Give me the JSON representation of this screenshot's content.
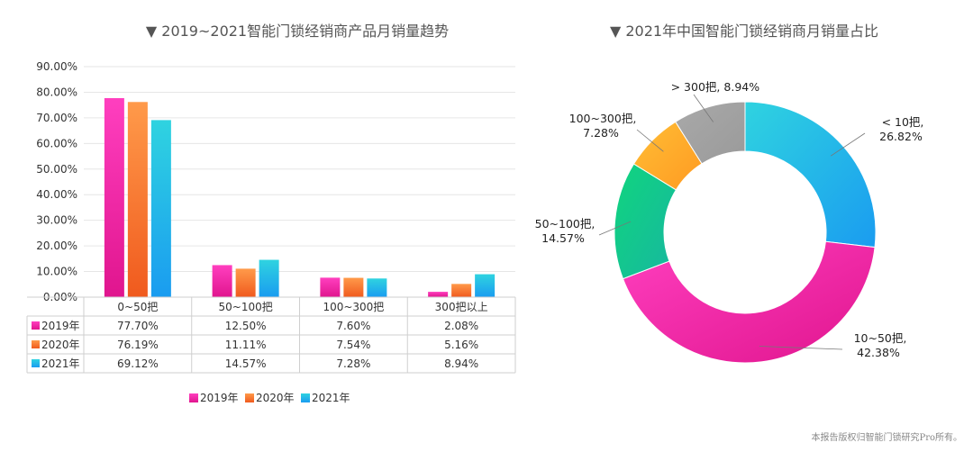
{
  "bar_title": "▼ 2019~2021智能门锁经销商产品月销量趋势",
  "donut_title": "▼ 2021年中国智能门锁经销商月销量占比",
  "watermark": "本报告版权归智能门锁研究Pro所有。",
  "colors": {
    "s2019_top": "#ff3fbf",
    "s2019_bot": "#e0158e",
    "s2020_top": "#ff9a4a",
    "s2020_bot": "#f05a1e",
    "s2021_top": "#2fd3e0",
    "s2021_bot": "#1a9cf0",
    "grid": "#e6e6e6",
    "table_border": "#cfcfcf"
  },
  "chart_data": [
    {
      "type": "bar",
      "title": "▼ 2019~2021智能门锁经销商产品月销量趋势",
      "categories": [
        "0~50把",
        "50~100把",
        "100~300把",
        "300把以上"
      ],
      "series": [
        {
          "name": "2019年",
          "values": [
            77.7,
            12.5,
            7.6,
            2.08
          ],
          "labels": [
            "77.70%",
            "12.50%",
            "7.60%",
            "2.08%"
          ]
        },
        {
          "name": "2020年",
          "values": [
            76.19,
            11.11,
            7.54,
            5.16
          ],
          "labels": [
            "76.19%",
            "11.11%",
            "7.54%",
            "5.16%"
          ]
        },
        {
          "name": "2021年",
          "values": [
            69.12,
            14.57,
            7.28,
            8.94
          ],
          "labels": [
            "69.12%",
            "14.57%",
            "7.28%",
            "8.94%"
          ]
        }
      ],
      "yticks": [
        "0.00%",
        "10.00%",
        "20.00%",
        "30.00%",
        "40.00%",
        "50.00%",
        "60.00%",
        "70.00%",
        "80.00%",
        "90.00%"
      ],
      "ylim": [
        0,
        90
      ],
      "grid": true,
      "legend": "bottom"
    },
    {
      "type": "pie",
      "title": "▼ 2021年中国智能门锁经销商月销量占比",
      "slices": [
        {
          "label": "< 10把",
          "value": 26.82,
          "text": "26.82%",
          "color_a": "#2fd3e0",
          "color_b": "#1a9cf0"
        },
        {
          "label": "10~50把",
          "value": 42.38,
          "text": "42.38%",
          "color_a": "#ff3fbf",
          "color_b": "#e0158e"
        },
        {
          "label": "50~100把",
          "value": 14.57,
          "text": "14.57%",
          "color_a": "#10d57e",
          "color_b": "#17b7a0"
        },
        {
          "label": "100~300把",
          "value": 7.28,
          "text": "7.28%",
          "color_a": "#ffbe35",
          "color_b": "#ff9a22"
        },
        {
          "label": "> 300把",
          "value": 8.94,
          "text": "8.94%",
          "color_a": "#a9a9a9",
          "color_b": "#9a9a9a"
        }
      ]
    }
  ]
}
